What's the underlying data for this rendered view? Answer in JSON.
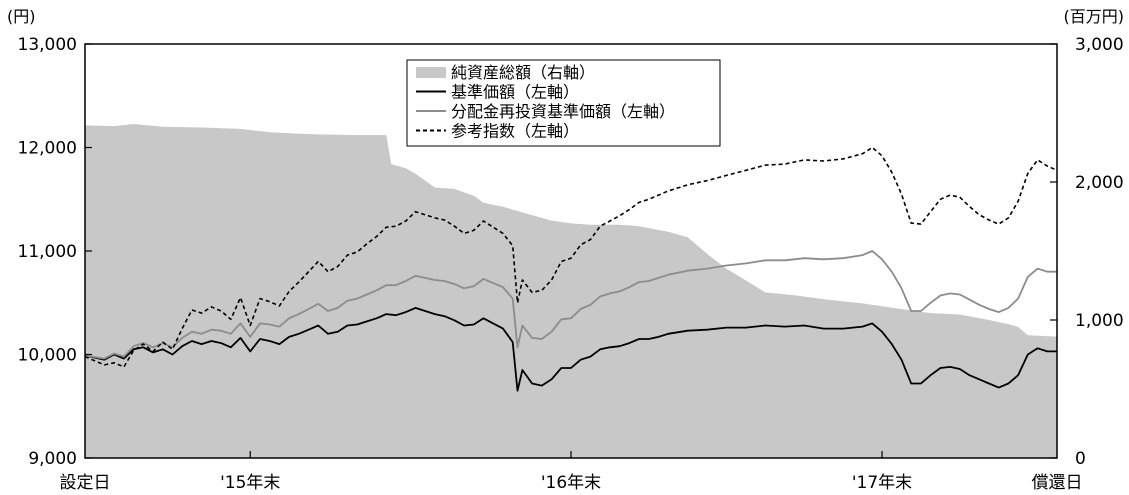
{
  "chart_data": {
    "type": "line",
    "left_axis": {
      "unit": "(円)",
      "min": 9000,
      "max": 13000,
      "ticks": [
        "9,000",
        "10,000",
        "11,000",
        "12,000",
        "13,000"
      ],
      "tick_values": [
        9000,
        10000,
        11000,
        12000,
        13000
      ]
    },
    "right_axis": {
      "unit": "(百万円)",
      "min": 0,
      "max": 3000,
      "ticks": [
        "0",
        "1,000",
        "2,000",
        "3,000"
      ],
      "tick_values": [
        0,
        1000,
        2000,
        3000
      ]
    },
    "x_axis": {
      "min": 0,
      "max": 100,
      "labels": [
        {
          "text": "設定日",
          "at": 0
        },
        {
          "text": "'15年末",
          "at": 17
        },
        {
          "text": "'16年末",
          "at": 50
        },
        {
          "text": "'17年末",
          "at": 82
        },
        {
          "text": "償還日",
          "at": 100
        }
      ]
    },
    "legend": {
      "placement": "top-center",
      "entries": [
        "純資産総額（右軸）",
        "基準価額（左軸）",
        "分配金再投資基準価額（左軸）",
        "参考指数（左軸）"
      ]
    },
    "series": [
      {
        "name": "純資産総額（右軸）",
        "axis": "right",
        "style": "area",
        "color": "#c8c8c8",
        "x": [
          0,
          3,
          5,
          8,
          12,
          16,
          19,
          22,
          24,
          28,
          30,
          31,
          31.5,
          33,
          34,
          36,
          38,
          40,
          41,
          43,
          46,
          48,
          50,
          52,
          55,
          57,
          60,
          62,
          64,
          66,
          67,
          70,
          73,
          76,
          80,
          84,
          87,
          90,
          93,
          95,
          96,
          97,
          100
        ],
        "values": [
          2410,
          2405,
          2420,
          2400,
          2395,
          2385,
          2360,
          2350,
          2345,
          2340,
          2340,
          2340,
          2130,
          2100,
          2060,
          1960,
          1950,
          1900,
          1850,
          1820,
          1760,
          1720,
          1700,
          1690,
          1690,
          1680,
          1640,
          1600,
          1480,
          1370,
          1330,
          1200,
          1180,
          1150,
          1120,
          1080,
          1050,
          1040,
          1000,
          970,
          950,
          890,
          880
        ]
      },
      {
        "name": "基準価額（左軸）",
        "axis": "left",
        "style": "solid",
        "color": "#000000",
        "x": [
          0,
          2,
          3,
          4,
          5,
          6,
          7,
          8,
          9,
          10,
          11,
          12,
          13,
          14,
          15,
          16,
          17,
          18,
          19,
          20,
          21,
          22,
          23,
          24,
          25,
          26,
          27,
          28,
          29,
          30,
          31,
          32,
          33,
          34,
          35,
          36,
          37,
          38,
          39,
          40,
          41,
          42,
          43,
          44,
          44.5,
          45,
          46,
          47,
          48,
          49,
          50,
          51,
          52,
          53,
          54,
          55,
          56,
          57,
          58,
          59,
          60,
          62,
          64,
          66,
          68,
          70,
          72,
          74,
          76,
          78,
          80,
          81,
          82,
          83,
          84,
          85,
          86,
          87,
          88,
          89,
          90,
          91,
          92,
          93,
          94,
          95,
          96,
          97,
          98,
          99,
          100
        ],
        "values": [
          9990,
          9950,
          10000,
          9960,
          10050,
          10070,
          10020,
          10050,
          10000,
          10080,
          10130,
          10100,
          10130,
          10110,
          10070,
          10160,
          10030,
          10150,
          10130,
          10100,
          10170,
          10200,
          10240,
          10280,
          10200,
          10220,
          10280,
          10290,
          10320,
          10350,
          10390,
          10380,
          10410,
          10450,
          10420,
          10390,
          10370,
          10330,
          10280,
          10290,
          10350,
          10300,
          10250,
          10120,
          9650,
          9850,
          9720,
          9700,
          9760,
          9870,
          9870,
          9950,
          9980,
          10050,
          10070,
          10080,
          10110,
          10150,
          10150,
          10170,
          10200,
          10230,
          10240,
          10260,
          10260,
          10280,
          10270,
          10280,
          10250,
          10250,
          10270,
          10300,
          10220,
          10100,
          9950,
          9720,
          9720,
          9800,
          9870,
          9880,
          9860,
          9800,
          9760,
          9720,
          9680,
          9720,
          9800,
          10000,
          10060,
          10030,
          10030
        ]
      },
      {
        "name": "分配金再投資基準価額（左軸）",
        "axis": "left",
        "style": "solid",
        "color": "#8c8c8c",
        "x": [
          0,
          2,
          3,
          4,
          5,
          6,
          7,
          8,
          9,
          10,
          11,
          12,
          13,
          14,
          15,
          16,
          17,
          18,
          19,
          20,
          21,
          22,
          23,
          24,
          25,
          26,
          27,
          28,
          29,
          30,
          31,
          32,
          33,
          34,
          35,
          36,
          37,
          38,
          39,
          40,
          41,
          42,
          43,
          44,
          44.5,
          45,
          46,
          47,
          48,
          49,
          50,
          51,
          52,
          53,
          54,
          55,
          56,
          57,
          58,
          59,
          60,
          62,
          64,
          66,
          68,
          70,
          72,
          74,
          76,
          78,
          80,
          81,
          82,
          83,
          84,
          85,
          86,
          87,
          88,
          89,
          90,
          91,
          92,
          93,
          94,
          95,
          96,
          97,
          98,
          99,
          100
        ],
        "values": [
          9990,
          9960,
          10010,
          9980,
          10080,
          10110,
          10070,
          10110,
          10070,
          10160,
          10220,
          10200,
          10240,
          10230,
          10200,
          10300,
          10170,
          10300,
          10290,
          10270,
          10350,
          10390,
          10440,
          10490,
          10420,
          10450,
          10520,
          10540,
          10580,
          10620,
          10670,
          10670,
          10710,
          10760,
          10740,
          10720,
          10710,
          10680,
          10640,
          10660,
          10730,
          10690,
          10650,
          10540,
          10070,
          10280,
          10160,
          10150,
          10220,
          10340,
          10350,
          10440,
          10480,
          10560,
          10590,
          10610,
          10650,
          10700,
          10710,
          10740,
          10770,
          10810,
          10830,
          10860,
          10880,
          10910,
          10910,
          10930,
          10920,
          10930,
          10960,
          11000,
          10920,
          10800,
          10640,
          10420,
          10420,
          10500,
          10570,
          10590,
          10580,
          10530,
          10480,
          10440,
          10410,
          10450,
          10540,
          10750,
          10830,
          10800,
          10800
        ]
      },
      {
        "name": "参考指数（左軸）",
        "axis": "left",
        "style": "dashed",
        "color": "#000000",
        "x": [
          0,
          2,
          3,
          4,
          5,
          6,
          7,
          8,
          9,
          10,
          11,
          12,
          13,
          14,
          15,
          16,
          17,
          18,
          19,
          20,
          21,
          22,
          23,
          24,
          25,
          26,
          27,
          28,
          29,
          30,
          31,
          32,
          33,
          34,
          35,
          36,
          37,
          38,
          39,
          40,
          41,
          42,
          43,
          44,
          44.5,
          45,
          46,
          47,
          48,
          49,
          50,
          51,
          52,
          53,
          54,
          55,
          56,
          57,
          58,
          59,
          60,
          62,
          64,
          66,
          68,
          70,
          72,
          74,
          76,
          78,
          80,
          81,
          82,
          83,
          84,
          85,
          86,
          87,
          88,
          89,
          90,
          91,
          92,
          93,
          94,
          95,
          96,
          97,
          98,
          99,
          100
        ],
        "values": [
          9980,
          9900,
          9920,
          9880,
          10040,
          10100,
          10030,
          10120,
          10050,
          10250,
          10430,
          10400,
          10460,
          10420,
          10340,
          10550,
          10280,
          10540,
          10510,
          10470,
          10610,
          10700,
          10800,
          10900,
          10800,
          10850,
          10960,
          10990,
          11070,
          11140,
          11230,
          11240,
          11290,
          11380,
          11350,
          11320,
          11300,
          11240,
          11170,
          11200,
          11290,
          11230,
          11170,
          11050,
          10500,
          10720,
          10600,
          10620,
          10720,
          10900,
          10930,
          11060,
          11110,
          11240,
          11290,
          11340,
          11400,
          11470,
          11500,
          11540,
          11580,
          11640,
          11680,
          11730,
          11780,
          11830,
          11840,
          11880,
          11870,
          11890,
          11940,
          12000,
          11920,
          11760,
          11550,
          11270,
          11260,
          11380,
          11500,
          11540,
          11520,
          11430,
          11350,
          11300,
          11260,
          11320,
          11480,
          11750,
          11880,
          11820,
          11780
        ]
      }
    ]
  }
}
